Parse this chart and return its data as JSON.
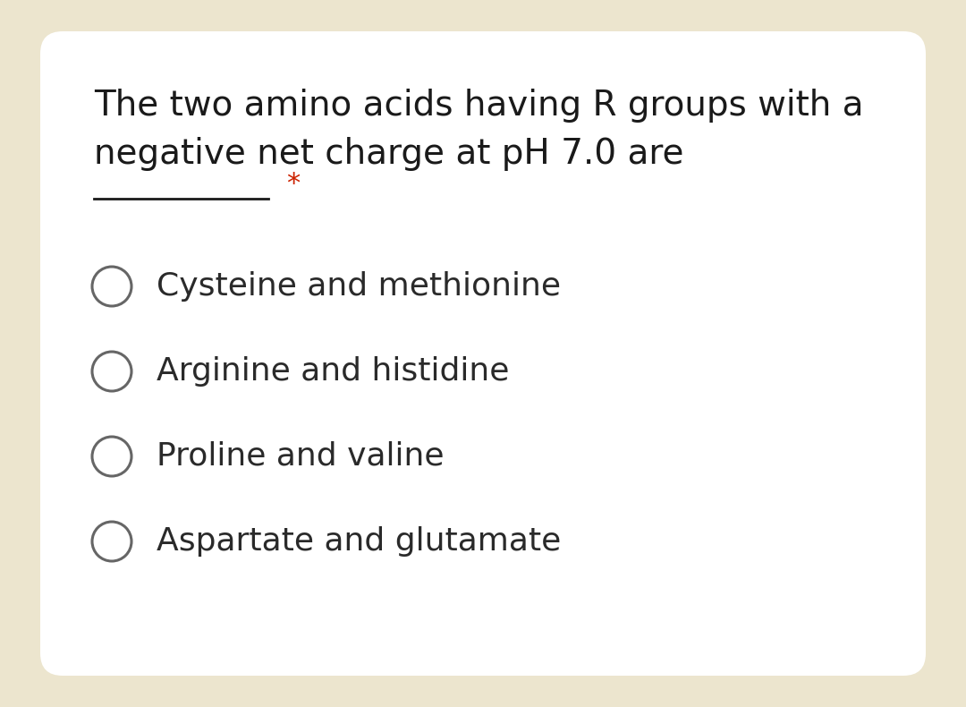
{
  "question_line1": "The two amino acids having R groups with a",
  "question_line2": "negative net charge at pH 7.0 are",
  "required_marker": "*",
  "options": [
    "Cysteine and methionine",
    "Arginine and histidine",
    "Proline and valine",
    "Aspartate and glutamate"
  ],
  "bg_color": "#ece5ce",
  "card_color": "#ffffff",
  "question_fontsize": 28,
  "option_fontsize": 26,
  "question_text_color": "#1a1a1a",
  "option_text_color": "#2a2a2a",
  "circle_color": "#666666",
  "circle_linewidth": 2.2,
  "required_color": "#cc2200",
  "required_fontsize": 22
}
